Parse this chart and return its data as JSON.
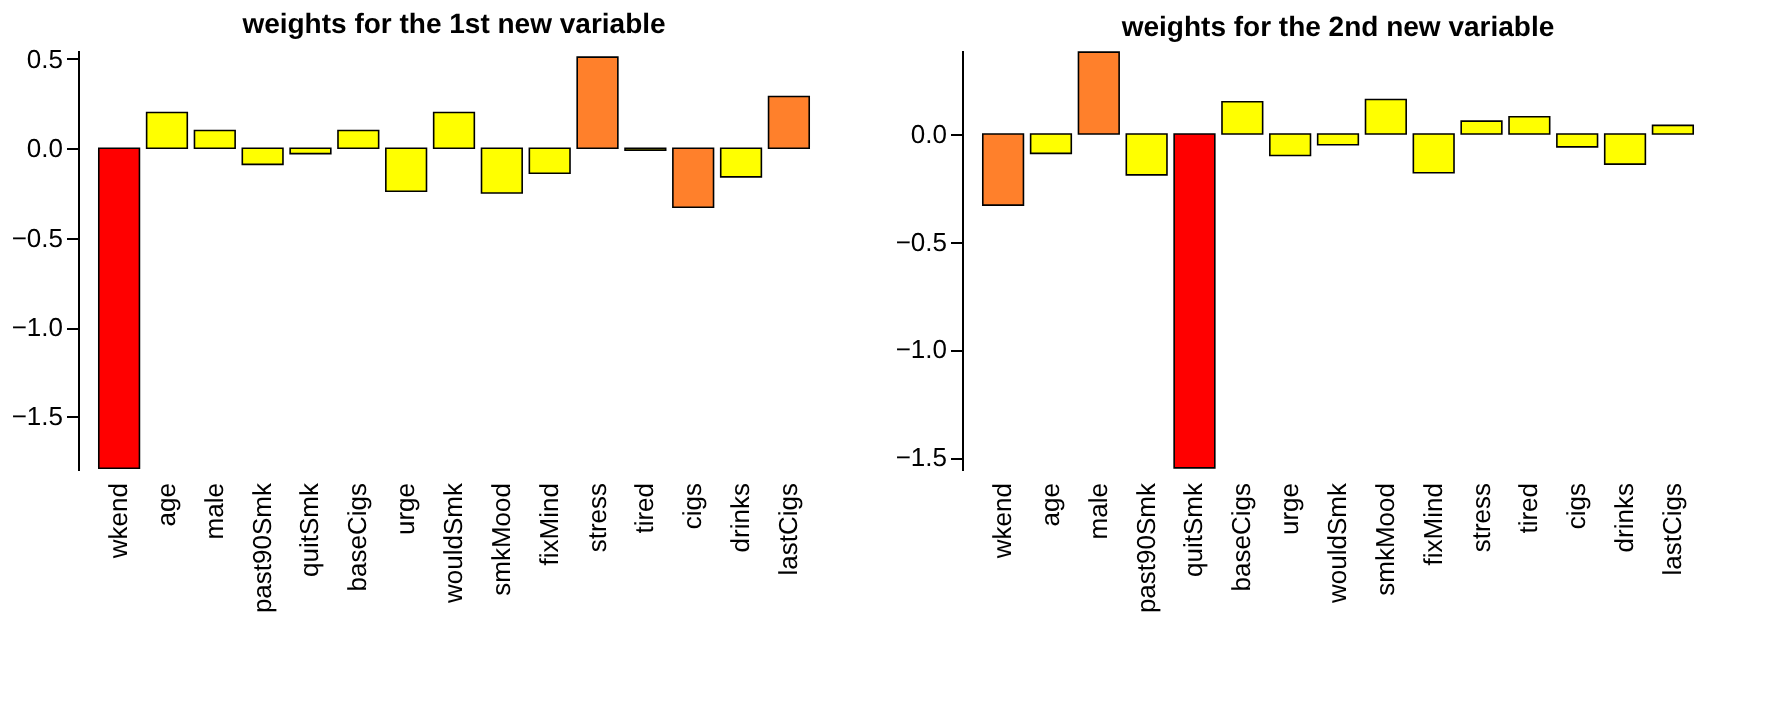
{
  "chart_data": [
    {
      "type": "bar",
      "title": "weights for the 1st new variable",
      "categories": [
        "wkend",
        "age",
        "male",
        "past90Smk",
        "quitSmk",
        "baseCigs",
        "urge",
        "wouldSmk",
        "smkMood",
        "fixMind",
        "stress",
        "tired",
        "cigs",
        "drinks",
        "lastCigs"
      ],
      "values": [
        -1.79,
        0.2,
        0.1,
        -0.09,
        -0.03,
        0.1,
        -0.24,
        0.2,
        -0.25,
        -0.14,
        0.51,
        -0.01,
        -0.33,
        -0.16,
        0.29
      ],
      "colors": [
        "#ff0000",
        "#ffff00",
        "#ffff00",
        "#ffff00",
        "#ffff00",
        "#ffff00",
        "#ffff00",
        "#ffff00",
        "#ffff00",
        "#ffff00",
        "#ff802b",
        "#ffff00",
        "#ff802b",
        "#ffff00",
        "#ff802b"
      ],
      "ylim": [
        -1.8,
        0.55
      ],
      "yticks": [
        {
          "value": -1.5,
          "label": "−1.5"
        },
        {
          "value": -1,
          "label": "−1.0"
        },
        {
          "value": -0.5,
          "label": "−0.5"
        },
        {
          "value": 0,
          "label": "0.0"
        },
        {
          "value": 0.5,
          "label": "0.5"
        }
      ],
      "grid": false
    },
    {
      "type": "bar",
      "title": "weights for the 2nd new variable",
      "categories": [
        "wkend",
        "age",
        "male",
        "past90Smk",
        "quitSmk",
        "baseCigs",
        "urge",
        "wouldSmk",
        "smkMood",
        "fixMind",
        "stress",
        "tired",
        "cigs",
        "drinks",
        "lastCigs"
      ],
      "values": [
        -0.33,
        -0.09,
        0.38,
        -0.19,
        -1.55,
        0.15,
        -0.1,
        -0.05,
        0.16,
        -0.18,
        0.06,
        0.08,
        -0.06,
        -0.14,
        0.04
      ],
      "colors": [
        "#ff802b",
        "#ffff00",
        "#ff802b",
        "#ffff00",
        "#ff0000",
        "#ffff00",
        "#ffff00",
        "#ffff00",
        "#ffff00",
        "#ffff00",
        "#ffff00",
        "#ffff00",
        "#ffff00",
        "#ffff00",
        "#ffff00"
      ],
      "ylim": [
        -1.56,
        0.39
      ],
      "yticks": [
        {
          "value": -1.5,
          "label": "−1.5"
        },
        {
          "value": -1,
          "label": "−1.0"
        },
        {
          "value": -0.5,
          "label": "−0.5"
        },
        {
          "value": 0,
          "label": "0.0"
        }
      ],
      "grid": false
    }
  ]
}
